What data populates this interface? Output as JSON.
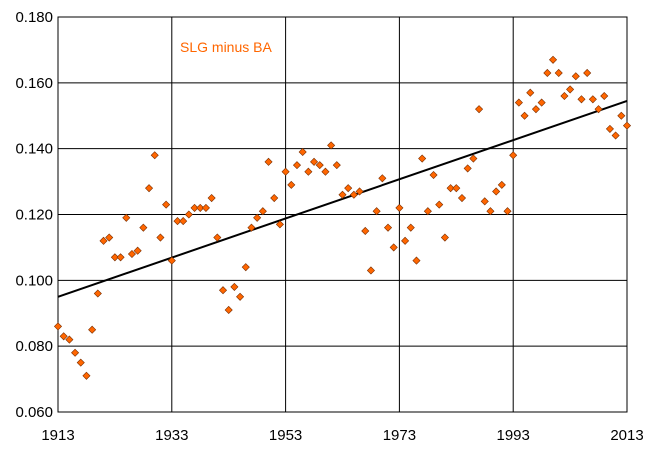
{
  "chart_data": {
    "type": "scatter",
    "title": "",
    "xlabel": "",
    "ylabel": "",
    "annotation": "SLG minus BA",
    "colors": {
      "point": "#FF6600",
      "point_stroke": "#7a2e00",
      "trend": "#000000",
      "annotation": "#FF6600",
      "grid": "#000000"
    },
    "xlim": [
      1913,
      2013
    ],
    "ylim": [
      0.06,
      0.18
    ],
    "x_ticks": [
      1913,
      1933,
      1953,
      1973,
      1993,
      2013
    ],
    "y_ticks": [
      0.06,
      0.08,
      0.1,
      0.12,
      0.14,
      0.16,
      0.18
    ],
    "x_tick_labels": [
      "1913",
      "1933",
      "1953",
      "1973",
      "1993",
      "2013"
    ],
    "y_tick_labels": [
      "0.060",
      "0.080",
      "0.100",
      "0.120",
      "0.140",
      "0.160",
      "0.180"
    ],
    "grid": true,
    "trendline": {
      "x": [
        1913,
        2013
      ],
      "y": [
        0.095,
        0.1545
      ]
    },
    "series": [
      {
        "points": [
          [
            1913,
            0.086
          ],
          [
            1914,
            0.083
          ],
          [
            1915,
            0.082
          ],
          [
            1916,
            0.078
          ],
          [
            1917,
            0.075
          ],
          [
            1918,
            0.071
          ],
          [
            1919,
            0.085
          ],
          [
            1920,
            0.096
          ],
          [
            1921,
            0.112
          ],
          [
            1922,
            0.113
          ],
          [
            1923,
            0.107
          ],
          [
            1924,
            0.107
          ],
          [
            1925,
            0.119
          ],
          [
            1926,
            0.108
          ],
          [
            1927,
            0.109
          ],
          [
            1928,
            0.116
          ],
          [
            1929,
            0.128
          ],
          [
            1930,
            0.138
          ],
          [
            1931,
            0.113
          ],
          [
            1932,
            0.123
          ],
          [
            1933,
            0.106
          ],
          [
            1934,
            0.118
          ],
          [
            1935,
            0.118
          ],
          [
            1936,
            0.12
          ],
          [
            1937,
            0.122
          ],
          [
            1938,
            0.122
          ],
          [
            1939,
            0.122
          ],
          [
            1940,
            0.125
          ],
          [
            1941,
            0.113
          ],
          [
            1942,
            0.097
          ],
          [
            1943,
            0.091
          ],
          [
            1944,
            0.098
          ],
          [
            1945,
            0.095
          ],
          [
            1946,
            0.104
          ],
          [
            1947,
            0.116
          ],
          [
            1948,
            0.119
          ],
          [
            1949,
            0.121
          ],
          [
            1950,
            0.136
          ],
          [
            1951,
            0.125
          ],
          [
            1952,
            0.117
          ],
          [
            1953,
            0.133
          ],
          [
            1954,
            0.129
          ],
          [
            1955,
            0.135
          ],
          [
            1956,
            0.139
          ],
          [
            1957,
            0.133
          ],
          [
            1958,
            0.136
          ],
          [
            1959,
            0.135
          ],
          [
            1960,
            0.133
          ],
          [
            1961,
            0.141
          ],
          [
            1962,
            0.135
          ],
          [
            1963,
            0.126
          ],
          [
            1964,
            0.128
          ],
          [
            1965,
            0.126
          ],
          [
            1966,
            0.127
          ],
          [
            1967,
            0.115
          ],
          [
            1968,
            0.103
          ],
          [
            1969,
            0.121
          ],
          [
            1970,
            0.131
          ],
          [
            1971,
            0.116
          ],
          [
            1972,
            0.11
          ],
          [
            1973,
            0.122
          ],
          [
            1974,
            0.112
          ],
          [
            1975,
            0.116
          ],
          [
            1976,
            0.106
          ],
          [
            1977,
            0.137
          ],
          [
            1978,
            0.121
          ],
          [
            1979,
            0.132
          ],
          [
            1980,
            0.123
          ],
          [
            1981,
            0.113
          ],
          [
            1982,
            0.128
          ],
          [
            1983,
            0.128
          ],
          [
            1984,
            0.125
          ],
          [
            1985,
            0.134
          ],
          [
            1986,
            0.137
          ],
          [
            1987,
            0.152
          ],
          [
            1988,
            0.124
          ],
          [
            1989,
            0.121
          ],
          [
            1990,
            0.127
          ],
          [
            1991,
            0.129
          ],
          [
            1992,
            0.121
          ],
          [
            1993,
            0.138
          ],
          [
            1994,
            0.154
          ],
          [
            1995,
            0.15
          ],
          [
            1996,
            0.157
          ],
          [
            1997,
            0.152
          ],
          [
            1998,
            0.154
          ],
          [
            1999,
            0.163
          ],
          [
            2000,
            0.167
          ],
          [
            2001,
            0.163
          ],
          [
            2002,
            0.156
          ],
          [
            2003,
            0.158
          ],
          [
            2004,
            0.162
          ],
          [
            2005,
            0.155
          ],
          [
            2006,
            0.163
          ],
          [
            2007,
            0.155
          ],
          [
            2008,
            0.152
          ],
          [
            2009,
            0.156
          ],
          [
            2010,
            0.146
          ],
          [
            2011,
            0.144
          ],
          [
            2012,
            0.15
          ],
          [
            2013,
            0.147
          ]
        ]
      }
    ]
  }
}
